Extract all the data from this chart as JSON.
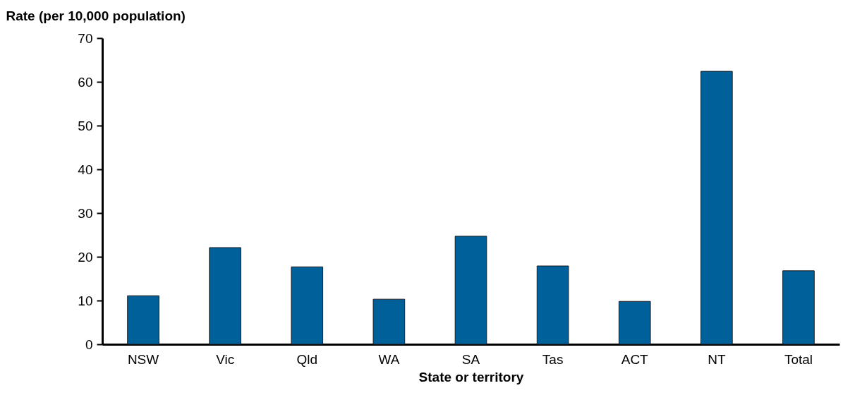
{
  "chart_data": {
    "type": "bar",
    "xlabel": "State or territory",
    "ylabel": "Rate (per 10,000 population)",
    "categories": [
      "NSW",
      "Vic",
      "Qld",
      "WA",
      "SA",
      "Tas",
      "ACT",
      "NT",
      "Total"
    ],
    "values": [
      11.1,
      22.1,
      17.7,
      10.3,
      24.7,
      17.9,
      9.8,
      62.4,
      16.8
    ],
    "color": "#00609a",
    "ylim": [
      0,
      70
    ],
    "yticks": [
      0,
      10,
      20,
      30,
      40,
      50,
      60,
      70
    ],
    "grid": false
  }
}
